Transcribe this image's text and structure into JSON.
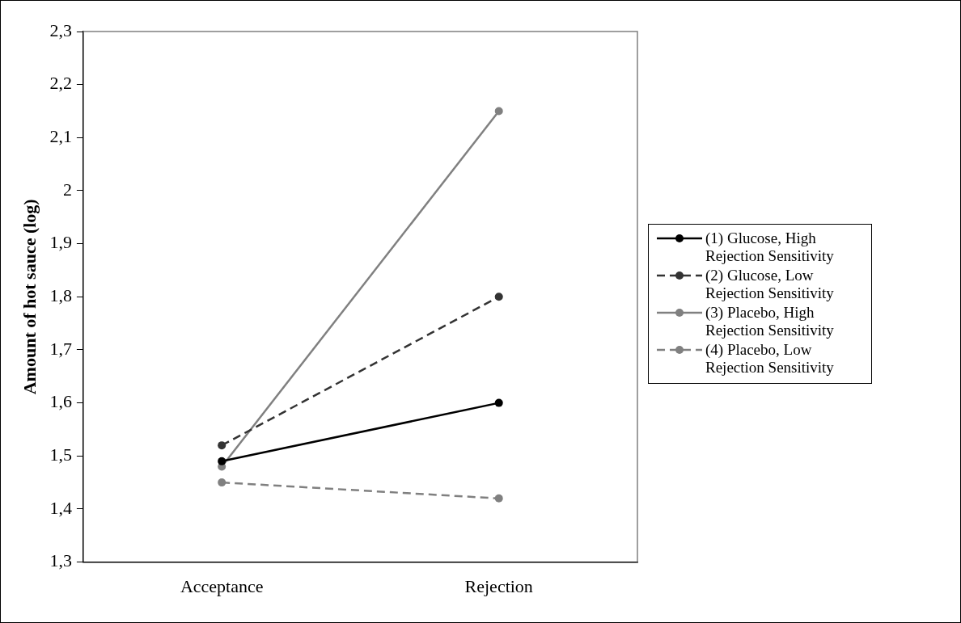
{
  "chart_data": {
    "type": "line",
    "ylabel": "Amount of hot sauce (log)",
    "categories": [
      "Acceptance",
      "Rejection"
    ],
    "series": [
      {
        "name": "(1) Glucose, High Rejection Sensitivity",
        "color": "#000000",
        "line_style": "solid",
        "values": [
          1.49,
          1.6
        ]
      },
      {
        "name": "(2) Glucose, Low Rejection Sensitivity",
        "color": "#333333",
        "line_style": "dashed",
        "values": [
          1.52,
          1.8
        ]
      },
      {
        "name": "(3) Placebo, High Rejection Sensitivity",
        "color": "#808080",
        "line_style": "solid",
        "values": [
          1.48,
          2.15
        ]
      },
      {
        "name": "(4) Placebo, Low Rejection Sensitivity",
        "color": "#808080",
        "line_style": "dashed",
        "values": [
          1.45,
          1.42
        ]
      }
    ],
    "ylim": [
      1.3,
      2.3
    ],
    "yticks": [
      {
        "value": 1.3,
        "label": "1,3"
      },
      {
        "value": 1.4,
        "label": "1,4"
      },
      {
        "value": 1.5,
        "label": "1,5"
      },
      {
        "value": 1.6,
        "label": "1,6"
      },
      {
        "value": 1.7,
        "label": "1,7"
      },
      {
        "value": 1.8,
        "label": "1,8"
      },
      {
        "value": 1.9,
        "label": "1,9"
      },
      {
        "value": 2,
        "label": "2"
      },
      {
        "value": 2.1,
        "label": "2,1"
      },
      {
        "value": 2.2,
        "label": "2,2"
      },
      {
        "value": 2.3,
        "label": "2,3"
      }
    ],
    "grid": false,
    "legend": "right",
    "marker": "circle"
  }
}
